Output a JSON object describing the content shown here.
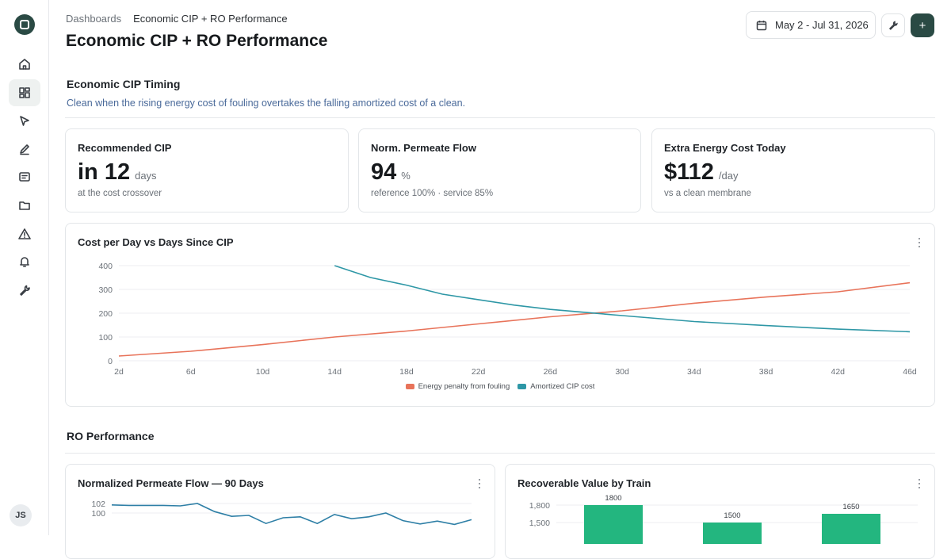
{
  "sidebar": {
    "items": [
      {
        "icon": "home-icon"
      },
      {
        "icon": "dashboard-icon",
        "active": true
      },
      {
        "icon": "cursor-icon"
      },
      {
        "icon": "pen-icon"
      },
      {
        "icon": "report-icon"
      },
      {
        "icon": "folder-icon"
      },
      {
        "icon": "alert-icon"
      },
      {
        "icon": "bell-icon"
      },
      {
        "icon": "wrench-icon"
      }
    ],
    "avatar_initials": "JS"
  },
  "header": {
    "breadcrumb_root": "Dashboards",
    "breadcrumb_current": "Economic CIP + RO Performance",
    "title": "Economic CIP + RO Performance",
    "date_range": "May 2 - Jul 31, 2026",
    "add_label": "+"
  },
  "cip_section": {
    "title": "Economic CIP Timing",
    "subtitle": "Clean when the rising energy cost of fouling overtakes the falling amortized cost of a clean."
  },
  "kpis": [
    {
      "title": "Recommended CIP",
      "value": "in 12",
      "unit": "days",
      "sub": "at the cost crossover"
    },
    {
      "title": "Norm. Permeate Flow",
      "value": "94",
      "unit": "%",
      "sub": "reference 100% · service 85%"
    },
    {
      "title": "Extra Energy Cost Today",
      "value": "$112",
      "unit": "/day",
      "sub": "vs a clean membrane"
    }
  ],
  "cost_chart": {
    "title": "Cost per Day vs Days Since CIP",
    "legend": [
      "Energy penalty from fouling",
      "Amortized CIP cost"
    ]
  },
  "ro_section": {
    "title": "RO Performance"
  },
  "flow_chart": {
    "title": "Normalized Permeate Flow — 90 Days"
  },
  "value_chart": {
    "title": "Recoverable Value by Train"
  },
  "colors": {
    "energy": "#e8735a",
    "cip": "#2e97a6",
    "flow": "#2e7fa6",
    "bar": "#23b67f",
    "brand": "#2a4a44"
  },
  "chart_data": [
    {
      "type": "line",
      "title": "Cost per Day vs Days Since CIP",
      "x_ticks": [
        "2d",
        "6d",
        "10d",
        "14d",
        "18d",
        "22d",
        "26d",
        "30d",
        "34d",
        "38d",
        "42d",
        "46d"
      ],
      "y_ticks": [
        0,
        100,
        200,
        300,
        400
      ],
      "ylim": [
        0,
        400
      ],
      "series": [
        {
          "name": "Energy penalty from fouling",
          "x": [
            2,
            6,
            10,
            14,
            18,
            22,
            26,
            30,
            34,
            38,
            42,
            46
          ],
          "values": [
            20,
            40,
            68,
            100,
            125,
            155,
            185,
            210,
            242,
            268,
            290,
            328
          ]
        },
        {
          "name": "Amortized CIP cost",
          "x": [
            14,
            16,
            18,
            20,
            22,
            24,
            26,
            30,
            34,
            38,
            42,
            46
          ],
          "values": [
            400,
            350,
            318,
            280,
            257,
            234,
            216,
            190,
            165,
            148,
            133,
            122
          ]
        }
      ],
      "legend_position": "bottom"
    },
    {
      "type": "line",
      "title": "Normalized Permeate Flow — 90 Days",
      "y_ticks": [
        100,
        102
      ],
      "series": [
        {
          "name": "",
          "values": [
            101.7,
            101.6,
            101.6,
            101.6,
            101.5,
            102.0,
            100.3,
            99.3,
            99.5,
            97.8,
            99.0,
            99.2,
            97.8,
            99.7,
            98.8,
            99.2,
            100.0,
            98.4,
            97.7,
            98.3,
            97.6,
            98.6
          ]
        }
      ]
    },
    {
      "type": "bar",
      "title": "Recoverable Value by Train",
      "y_ticks": [
        "1,500",
        "1,800"
      ],
      "values": [
        1800,
        1500,
        1650
      ],
      "data_labels": [
        "1800",
        "1500",
        "1650"
      ]
    }
  ]
}
